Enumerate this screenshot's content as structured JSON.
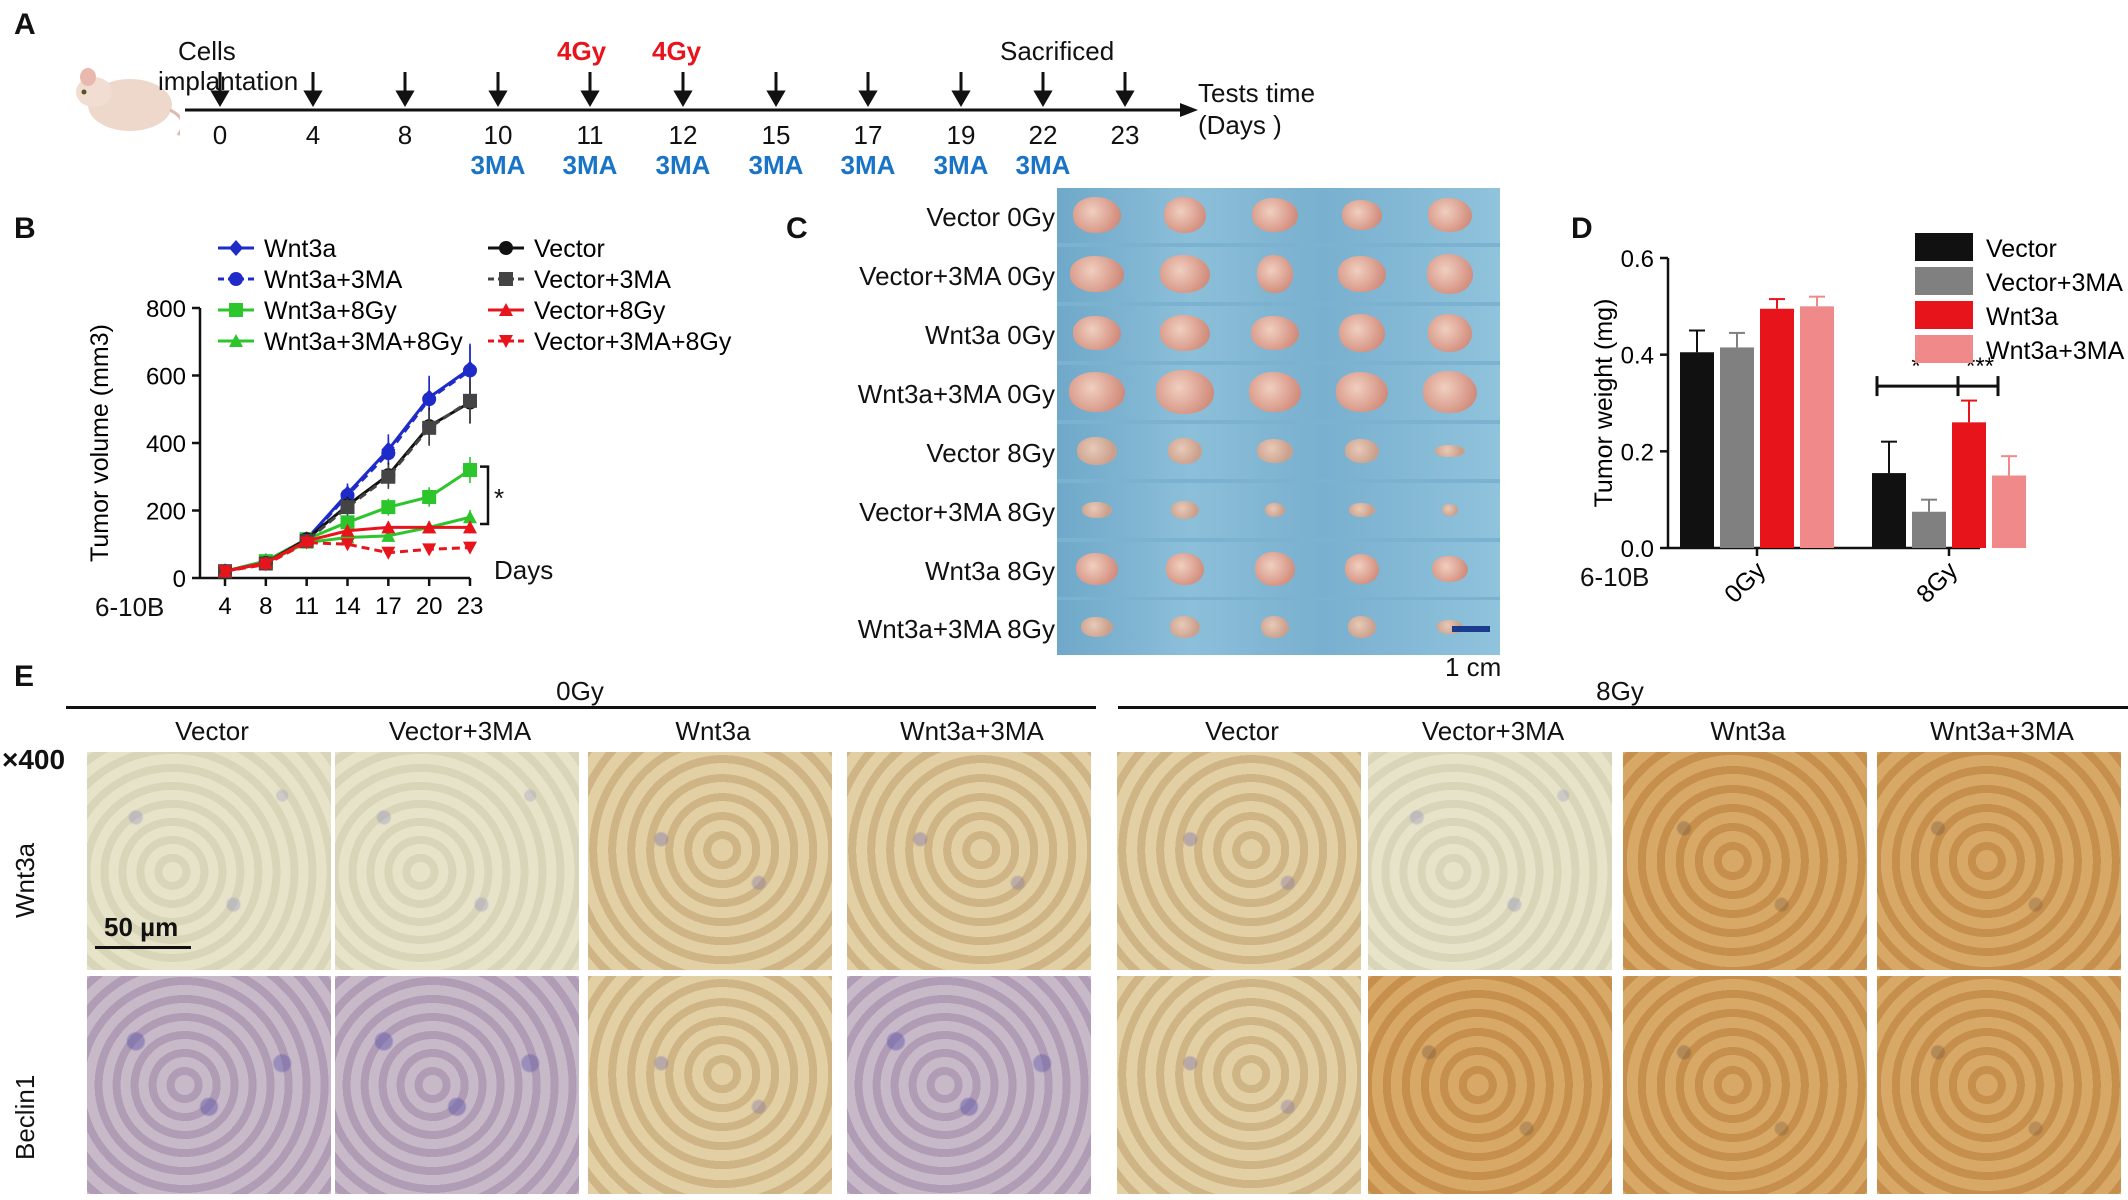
{
  "panels": {
    "A": {
      "label": "A",
      "implant_label_1": "Cells",
      "implant_label_2": "implantation",
      "gy_marks": [
        {
          "day": "11",
          "text": "4Gy"
        },
        {
          "day": "12",
          "text": "4Gy"
        }
      ],
      "sacrificed": "Sacrificed",
      "days": [
        "0",
        "4",
        "8",
        "10",
        "11",
        "12",
        "15",
        "17",
        "19",
        "22",
        "23"
      ],
      "ma_marks": [
        "3MA",
        "3MA",
        "3MA",
        "3MA",
        "3MA",
        "3MA",
        "3MA"
      ],
      "axis_label_1": "Tests time",
      "axis_label_2": "(Days )"
    },
    "B": {
      "label": "B",
      "cell_line": "6-10B",
      "days_label": "Days",
      "sig": "*"
    },
    "C": {
      "label": "C",
      "rows": [
        "Vector 0Gy",
        "Vector+3MA 0Gy",
        "Wnt3a 0Gy",
        "Wnt3a+3MA  0Gy",
        "Vector 8Gy",
        "Vector+3MA 8Gy",
        "Wnt3a 8Gy",
        "Wnt3a+3MA  8Gy"
      ],
      "scale": "1 cm"
    },
    "D": {
      "label": "D",
      "cell_line": "6-10B",
      "sig_1": "*",
      "sig_2": "***"
    },
    "E": {
      "label": "E",
      "group_0": "0Gy",
      "group_8": "8Gy",
      "columns": [
        "Vector",
        "Vector+3MA",
        "Wnt3a",
        "Wnt3a+3MA",
        "Vector",
        "Vector+3MA",
        "Wnt3a",
        "Wnt3a+3MA"
      ],
      "magnification": "×400",
      "row_labels": [
        "Wnt3a",
        "Beclin1"
      ],
      "scale": "50 µm"
    }
  },
  "colors": {
    "wnt3a": "#1f2bc9",
    "green": "#2cc52c",
    "vector": "#111111",
    "vector_3ma": "#444444",
    "red": "#e8141c",
    "gray": "#808080",
    "pink": "#f08a8a",
    "blue_text": "#1a74c6"
  },
  "chart_data": [
    {
      "type": "line",
      "panel": "B",
      "x": [
        4,
        8,
        11,
        14,
        17,
        20,
        23
      ],
      "xlabel": "",
      "ylabel": "Tumor volume (mm3)",
      "ylim": [
        0,
        800
      ],
      "yticks": [
        0,
        200,
        400,
        600,
        800
      ],
      "series": [
        {
          "name": "Wnt3a",
          "values": [
            20,
            50,
            115,
            250,
            380,
            535,
            620
          ],
          "color": "#1f2bc9",
          "marker": "diamond",
          "dash": false
        },
        {
          "name": "Wnt3a+3MA",
          "values": [
            20,
            48,
            112,
            245,
            370,
            530,
            615
          ],
          "color": "#1f2bc9",
          "marker": "circle",
          "dash": true
        },
        {
          "name": "Wnt3a+8Gy",
          "values": [
            20,
            50,
            115,
            165,
            210,
            240,
            320
          ],
          "color": "#2cc52c",
          "marker": "square",
          "dash": false
        },
        {
          "name": "Wnt3a+3MA+8Gy",
          "values": [
            20,
            45,
            105,
            120,
            125,
            150,
            180
          ],
          "color": "#2cc52c",
          "marker": "triangle",
          "dash": false
        },
        {
          "name": "Vector",
          "values": [
            20,
            45,
            115,
            215,
            305,
            450,
            520
          ],
          "color": "#111111",
          "marker": "circle",
          "dash": false
        },
        {
          "name": "Vector+3MA",
          "values": [
            20,
            43,
            110,
            210,
            300,
            445,
            525
          ],
          "color": "#444444",
          "marker": "square",
          "dash": true
        },
        {
          "name": "Vector+8Gy",
          "values": [
            20,
            45,
            110,
            140,
            150,
            150,
            150
          ],
          "color": "#e8141c",
          "marker": "triangle",
          "dash": false
        },
        {
          "name": "Vector+3MA+8Gy",
          "values": [
            20,
            40,
            105,
            100,
            75,
            85,
            90
          ],
          "color": "#e8141c",
          "marker": "triangle-down",
          "dash": true
        }
      ],
      "legend_placement": "top"
    },
    {
      "type": "bar",
      "panel": "D",
      "categories": [
        "0Gy",
        "8Gy"
      ],
      "ylabel": "Tumor weight (mg)",
      "ylim": [
        0,
        0.6
      ],
      "yticks": [
        "0.0",
        "0.2",
        "0.4",
        "0.6"
      ],
      "series": [
        {
          "name": "Vector",
          "values": [
            0.405,
            0.155
          ],
          "errors": [
            0.045,
            0.065
          ],
          "color": "#111111"
        },
        {
          "name": "Vector+3MA",
          "values": [
            0.415,
            0.075
          ],
          "errors": [
            0.03,
            0.025
          ],
          "color": "#808080"
        },
        {
          "name": "Wnt3a",
          "values": [
            0.495,
            0.26
          ],
          "errors": [
            0.02,
            0.045
          ],
          "color": "#e8141c"
        },
        {
          "name": "Wnt3a+3MA",
          "values": [
            0.5,
            0.15
          ],
          "errors": [
            0.02,
            0.04
          ],
          "color": "#f08a8a"
        }
      ],
      "legend_placement": "top-right"
    }
  ]
}
